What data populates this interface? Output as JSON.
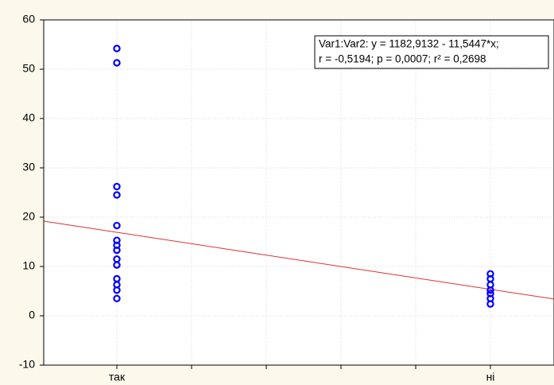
{
  "chart_data": {
    "type": "scatter",
    "categories": [
      "так",
      null,
      null,
      null,
      null,
      "ні"
    ],
    "values": [
      [
        54.2,
        51.3,
        26.2,
        24.5,
        18.3,
        15.3,
        14.3,
        13.3,
        11.5,
        10.3,
        7.5,
        6.3,
        5.2,
        3.5
      ],
      null,
      null,
      null,
      null,
      [
        8.5,
        7.5,
        6.3,
        5.2,
        4.5,
        3.5,
        2.4
      ]
    ],
    "color": "#0000ff",
    "ylim": [
      -10,
      60
    ],
    "yticks": [
      -10,
      0,
      10,
      20,
      30,
      40,
      50,
      60
    ],
    "grid": true,
    "trend_line": {
      "start": 19.2,
      "end": 3.4,
      "color": "#e03030"
    },
    "annotation": [
      "Var1:Var2:   y = 1182,9132 - 11,5447*x;",
      "r = -0,5194; p = 0,0007; r² = 0,2698"
    ]
  }
}
